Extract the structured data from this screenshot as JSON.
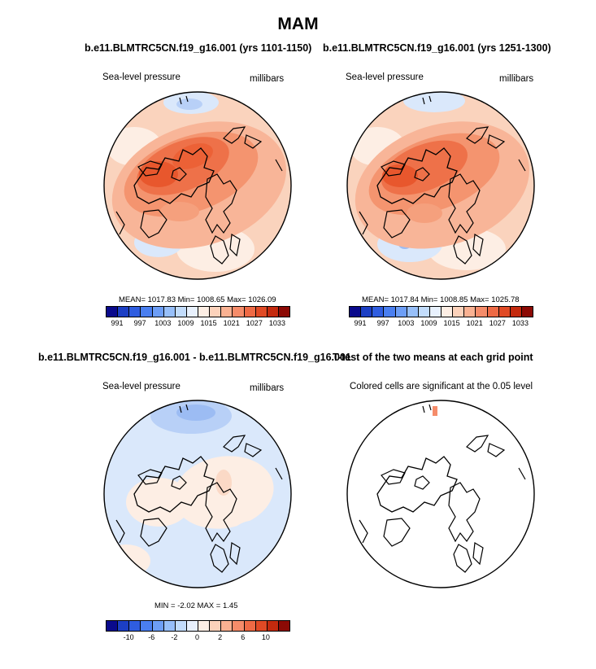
{
  "main_title": "MAM",
  "panels": {
    "p1": {
      "title": "b.e11.BLMTRC5CN.f19_g16.001 (yrs 1101-1150)",
      "left_label": "Sea-level pressure",
      "right_label": "millibars",
      "stats": "MEAN= 1017.83  Min= 1008.65  Max= 1026.09"
    },
    "p2": {
      "title": "b.e11.BLMTRC5CN.f19_g16.001 (yrs 1251-1300)",
      "left_label": "Sea-level pressure",
      "right_label": "millibars",
      "stats": "MEAN= 1017.84  Min= 1008.85  Max= 1025.78"
    },
    "p3": {
      "title": "b.e11.BLMTRC5CN.f19_g16.001 - b.e11.BLMTRC5CN.f19_g16.001",
      "left_label": "Sea-level pressure",
      "right_label": "millibars",
      "stats": "MIN =  -2.02 MAX =   1.45"
    },
    "p4": {
      "title": "T-test of the two means at each grid point",
      "left_label": "Colored cells are significant at the 0.05 level"
    }
  },
  "colorbar_abs": {
    "colors": [
      "#0a0a8c",
      "#1c3fc4",
      "#2f5de0",
      "#4a7ff0",
      "#6d9ef6",
      "#97bff9",
      "#c2dcfb",
      "#e8f1fd",
      "#fdeee4",
      "#fcd2bb",
      "#f9b192",
      "#f58c6a",
      "#ee6a45",
      "#e04a25",
      "#c42a0e",
      "#8c0a05"
    ],
    "ticks": [
      "991",
      "997",
      "1003",
      "1009",
      "1015",
      "1021",
      "1027",
      "1033"
    ]
  },
  "colorbar_diff": {
    "colors": [
      "#0a0a8c",
      "#1c3fc4",
      "#2f5de0",
      "#4a7ff0",
      "#6d9ef6",
      "#97bff9",
      "#c2dcfb",
      "#e8f1fd",
      "#fdeee4",
      "#fcd2bb",
      "#f9b192",
      "#f58c6a",
      "#ee6a45",
      "#e04a25",
      "#c42a0e",
      "#8c0a05"
    ],
    "ticks": [
      "-10",
      "-6",
      "-2",
      "0",
      "2",
      "6",
      "10"
    ]
  }
}
